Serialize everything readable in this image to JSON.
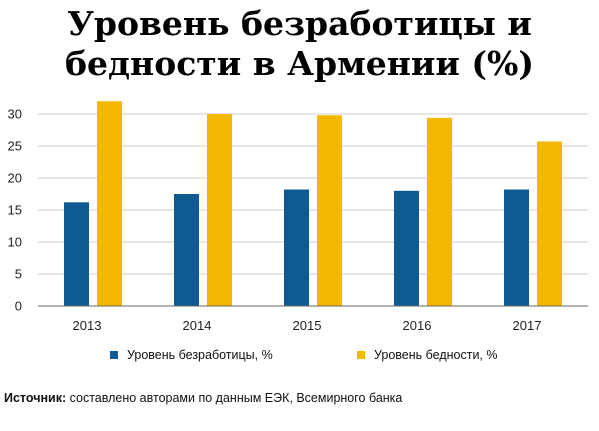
{
  "chart_data": {
    "type": "bar",
    "title_line1": "Уровень безработицы и",
    "title_line2": "бедности в Армении (%)",
    "categories": [
      "2013",
      "2014",
      "2015",
      "2016",
      "2017"
    ],
    "series": [
      {
        "name": "Уровень безработицы, %",
        "color": "#0f5a91",
        "values": [
          16.2,
          17.5,
          18.2,
          18.0,
          18.2
        ]
      },
      {
        "name": "Уровень бедности, %",
        "color": "#f5b800",
        "values": [
          32.0,
          30.0,
          29.8,
          29.4,
          25.7
        ]
      }
    ],
    "y_ticks": [
      "0",
      "5",
      "10",
      "15",
      "20",
      "25",
      "30"
    ],
    "ylim": [
      0,
      32
    ],
    "grid": true,
    "legend_position": "bottom"
  },
  "source": {
    "label": "Источник:",
    "text": " составлено авторами по данным ЕЭК, Всемирного банка"
  }
}
